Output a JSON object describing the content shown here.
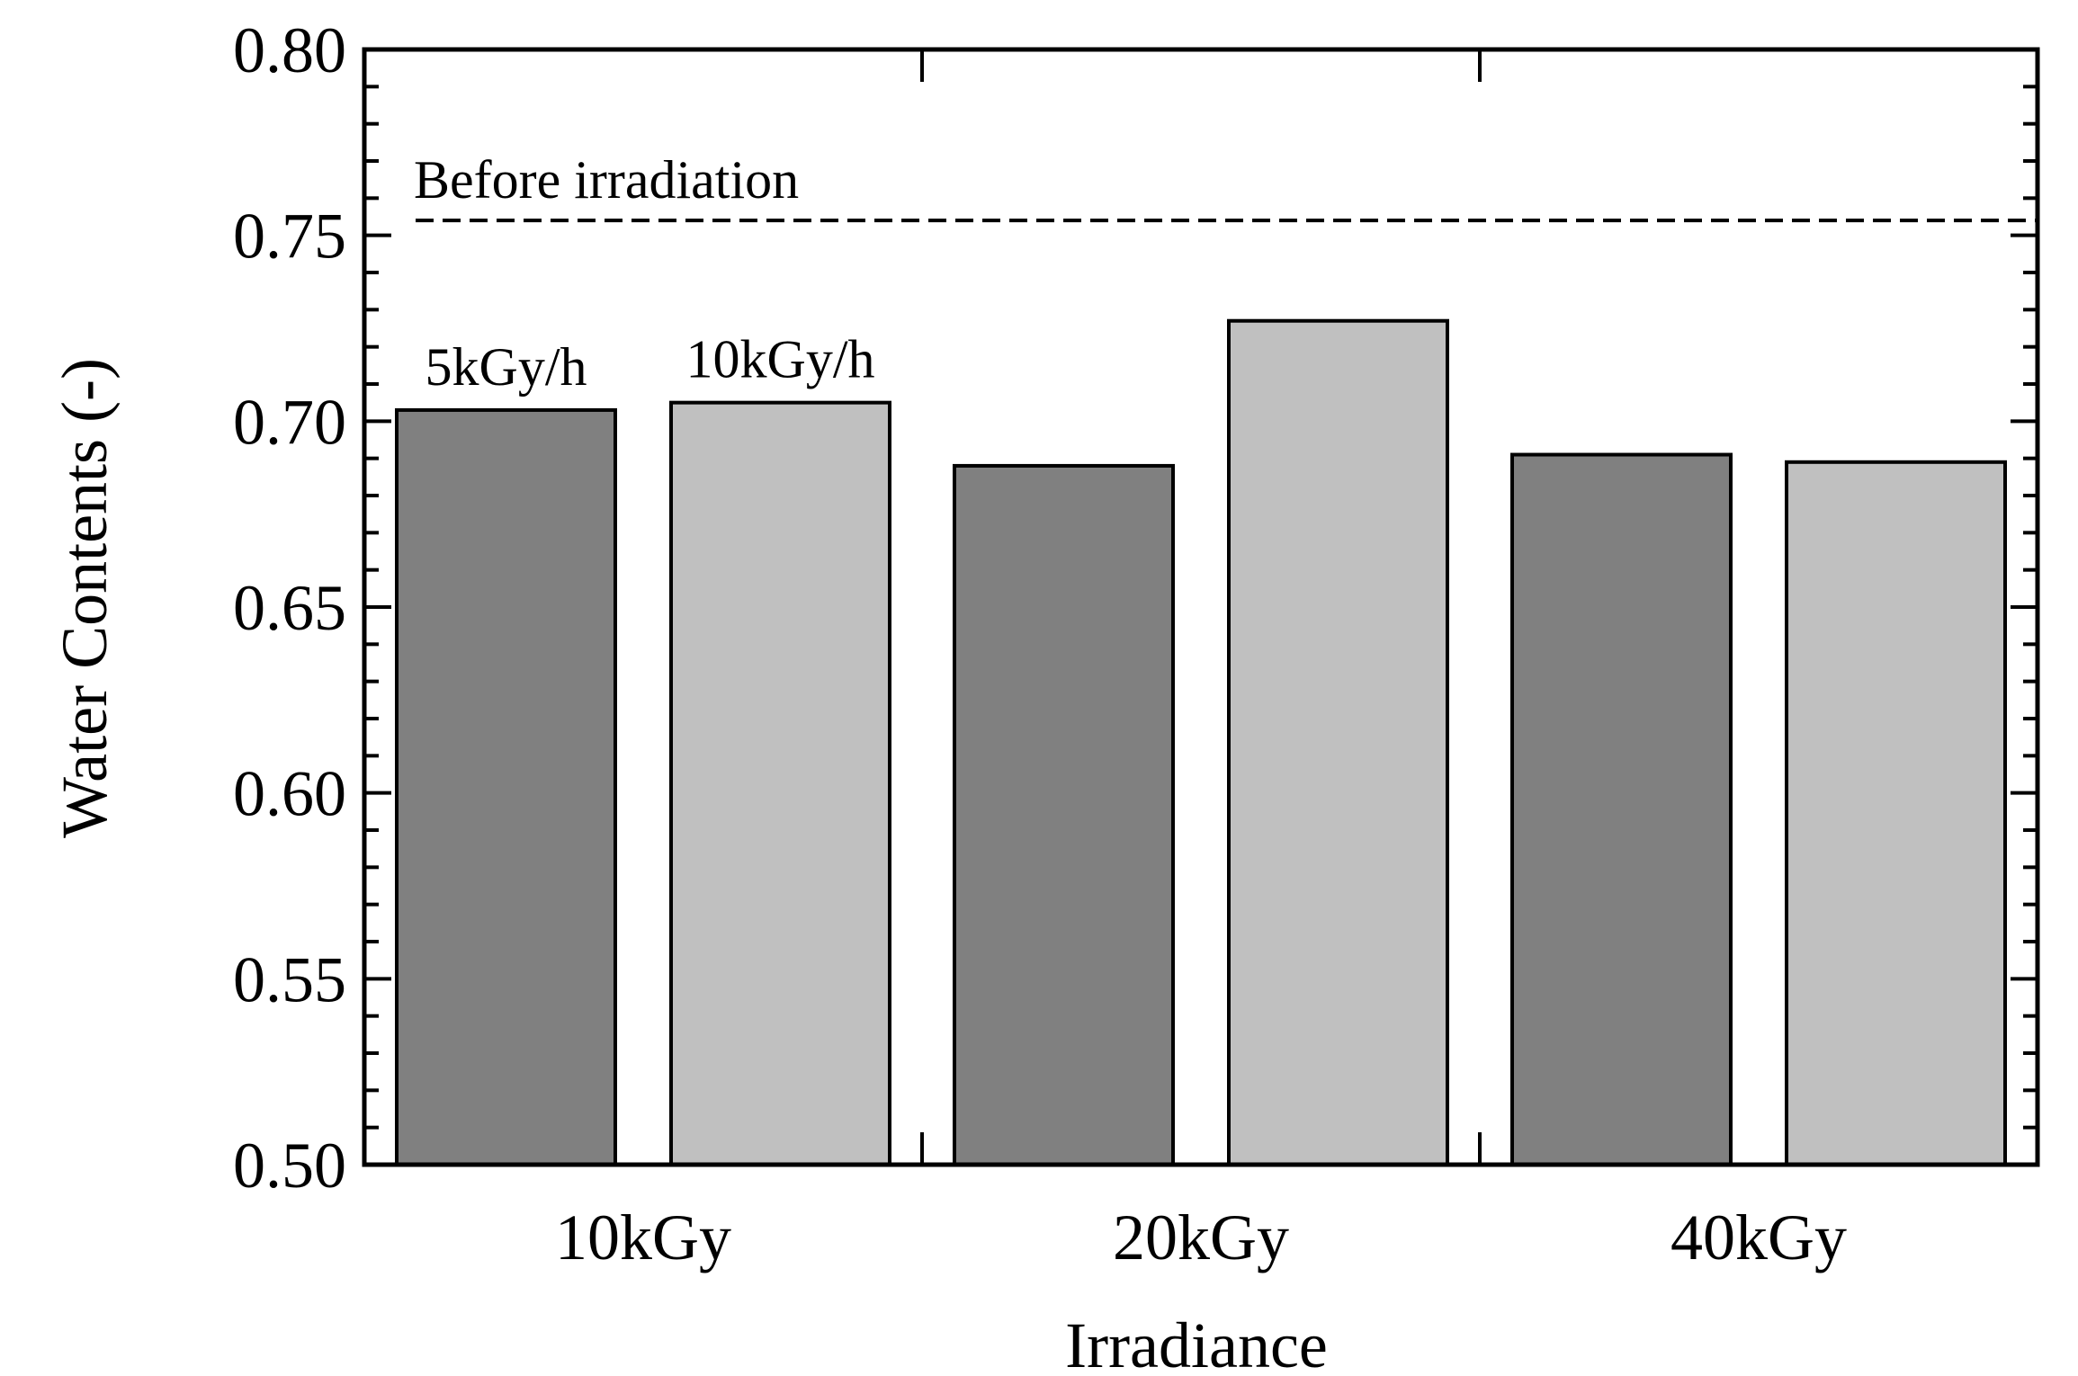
{
  "chart_data": {
    "type": "bar",
    "xlabel": "Irradiance",
    "ylabel": "Water Contents (-)",
    "ylim": [
      0.5,
      0.8
    ],
    "yticks": [
      "0.50",
      "0.55",
      "0.60",
      "0.65",
      "0.70",
      "0.75",
      "0.80"
    ],
    "categories": [
      "10kGy",
      "20kGy",
      "40kGy"
    ],
    "series": [
      {
        "name": "5kGy/h",
        "color": "#808080",
        "values": [
          0.703,
          0.688,
          0.691
        ]
      },
      {
        "name": "10kGy/h",
        "color": "#c0c0c0",
        "values": [
          0.705,
          0.727,
          0.689
        ]
      }
    ],
    "reference_line": {
      "label": "Before irradiation",
      "value": 0.754,
      "style": "dashed"
    },
    "grid": false
  }
}
